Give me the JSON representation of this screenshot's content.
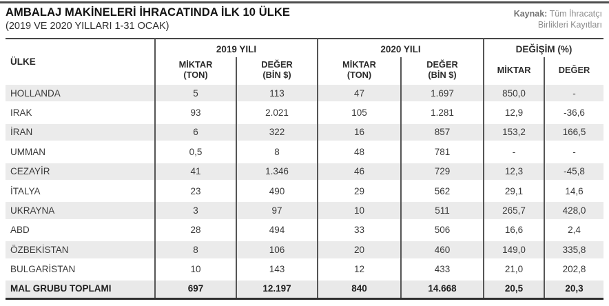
{
  "page": {
    "title": "AMBALAJ MAKİNELERİ İHRACATINDA İLK 10 ÜLKE",
    "subtitle": "(2019 VE 2020 YILLARI 1-31 OCAK)",
    "source_label": "Kaynak:",
    "source_text": " Tüm İhracatçı",
    "source_text2": "Birlikleri Kayıtları"
  },
  "table": {
    "country_header": "ÜLKE",
    "groups": [
      {
        "label": "2019 YILI",
        "sub": [
          "MİKTAR\n(TON)",
          "DEĞER\n(BİN $)"
        ]
      },
      {
        "label": "2020 YILI",
        "sub": [
          "MİKTAR\n(TON)",
          "DEĞER\n(BİN $)"
        ]
      },
      {
        "label": "DEĞİŞİM (%)",
        "sub": [
          "MİKTAR",
          "DEĞER"
        ]
      }
    ],
    "rows": [
      {
        "country": "HOLLANDA",
        "values": [
          "5",
          "113",
          "47",
          "1.697",
          "850,0",
          "-"
        ]
      },
      {
        "country": "IRAK",
        "values": [
          "93",
          "2.021",
          "105",
          "1.281",
          "12,9",
          "-36,6"
        ]
      },
      {
        "country": "İRAN",
        "values": [
          "6",
          "322",
          "16",
          "857",
          "153,2",
          "166,5"
        ]
      },
      {
        "country": "UMMAN",
        "values": [
          "0,5",
          "8",
          "48",
          "781",
          "-",
          "-"
        ]
      },
      {
        "country": "CEZAYİR",
        "values": [
          "41",
          "1.346",
          "46",
          "729",
          "12,3",
          "-45,8"
        ]
      },
      {
        "country": "İTALYA",
        "values": [
          "23",
          "490",
          "29",
          "562",
          "29,1",
          "14,6"
        ]
      },
      {
        "country": "UKRAYNA",
        "values": [
          "3",
          "97",
          "10",
          "511",
          "265,7",
          "428,0"
        ]
      },
      {
        "country": "ABD",
        "values": [
          "28",
          "494",
          "33",
          "506",
          "16,6",
          "2,4"
        ]
      },
      {
        "country": "ÖZBEKİSTAN",
        "values": [
          "8",
          "106",
          "20",
          "460",
          "149,0",
          "335,8"
        ]
      },
      {
        "country": "BULGARİSTAN",
        "values": [
          "10",
          "143",
          "12",
          "433",
          "21,0",
          "202,8"
        ]
      }
    ],
    "total": {
      "country": "MAL GRUBU TOPLAMI",
      "values": [
        "697",
        "12.197",
        "840",
        "14.668",
        "20,5",
        "20,3"
      ]
    }
  },
  "chart_data": {
    "type": "table",
    "title": "AMBALAJ MAKİNELERİ İHRACATINDA İLK 10 ÜLKE (2019 VE 2020 YILLARI 1-31 OCAK)",
    "source": "Kaynak: Tüm İhracatçı Birlikleri Kayıtları",
    "columns": [
      "ÜLKE",
      "2019 YILI MİKTAR (TON)",
      "2019 YILI DEĞER (BİN $)",
      "2020 YILI MİKTAR (TON)",
      "2020 YILI DEĞER (BİN $)",
      "DEĞİŞİM (%) MİKTAR",
      "DEĞİŞİM (%) DEĞER"
    ],
    "rows": [
      [
        "HOLLANDA",
        5,
        113,
        47,
        1697,
        850.0,
        null
      ],
      [
        "IRAK",
        93,
        2021,
        105,
        1281,
        12.9,
        -36.6
      ],
      [
        "İRAN",
        6,
        322,
        16,
        857,
        153.2,
        166.5
      ],
      [
        "UMMAN",
        0.5,
        8,
        48,
        781,
        null,
        null
      ],
      [
        "CEZAYİR",
        41,
        1346,
        46,
        729,
        12.3,
        -45.8
      ],
      [
        "İTALYA",
        23,
        490,
        29,
        562,
        29.1,
        14.6
      ],
      [
        "UKRAYNA",
        3,
        97,
        10,
        511,
        265.7,
        428.0
      ],
      [
        "ABD",
        28,
        494,
        33,
        506,
        16.6,
        2.4
      ],
      [
        "ÖZBEKİSTAN",
        8,
        106,
        20,
        460,
        149.0,
        335.8
      ],
      [
        "BULGARİSTAN",
        10,
        143,
        12,
        433,
        21.0,
        202.8
      ],
      [
        "MAL GRUBU TOPLAMI",
        697,
        12197,
        840,
        14668,
        20.5,
        20.3
      ]
    ]
  }
}
